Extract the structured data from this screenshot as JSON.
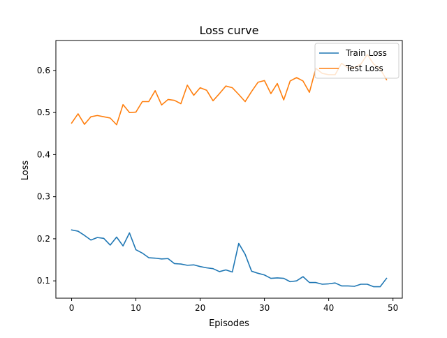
{
  "chart_data": {
    "type": "line",
    "title": "Loss curve",
    "xlabel": "Episodes",
    "ylabel": "Loss",
    "xlim": [
      -2.45,
      51.45
    ],
    "ylim": [
      0.0588,
      0.6712
    ],
    "xticks": [
      0,
      10,
      20,
      30,
      40,
      50
    ],
    "yticks": [
      0.1,
      0.2,
      0.3,
      0.4,
      0.5,
      0.6
    ],
    "ytick_labels": [
      "0.1",
      "0.2",
      "0.3",
      "0.4",
      "0.5",
      "0.6"
    ],
    "grid": false,
    "legend_position": "top-right",
    "x": [
      0,
      1,
      2,
      3,
      4,
      5,
      6,
      7,
      8,
      9,
      10,
      11,
      12,
      13,
      14,
      15,
      16,
      17,
      18,
      19,
      20,
      21,
      22,
      23,
      24,
      25,
      26,
      27,
      28,
      29,
      30,
      31,
      32,
      33,
      34,
      35,
      36,
      37,
      38,
      39,
      40,
      41,
      42,
      43,
      44,
      45,
      46,
      47,
      48,
      49
    ],
    "series": [
      {
        "name": "Train Loss",
        "color": "#1f77b4",
        "values": [
          0.221,
          0.218,
          0.208,
          0.197,
          0.203,
          0.201,
          0.185,
          0.204,
          0.183,
          0.214,
          0.174,
          0.166,
          0.155,
          0.154,
          0.152,
          0.153,
          0.141,
          0.14,
          0.137,
          0.138,
          0.134,
          0.131,
          0.129,
          0.122,
          0.126,
          0.121,
          0.189,
          0.163,
          0.123,
          0.118,
          0.114,
          0.106,
          0.107,
          0.106,
          0.098,
          0.1,
          0.11,
          0.096,
          0.096,
          0.092,
          0.093,
          0.095,
          0.088,
          0.088,
          0.087,
          0.092,
          0.092,
          0.086,
          0.086,
          0.106
        ]
      },
      {
        "name": "Test Loss",
        "color": "#ff7f0e",
        "values": [
          0.475,
          0.497,
          0.472,
          0.49,
          0.493,
          0.49,
          0.487,
          0.471,
          0.519,
          0.5,
          0.501,
          0.526,
          0.526,
          0.552,
          0.518,
          0.531,
          0.529,
          0.521,
          0.565,
          0.541,
          0.559,
          0.553,
          0.528,
          0.545,
          0.563,
          0.559,
          0.543,
          0.526,
          0.55,
          0.572,
          0.576,
          0.545,
          0.569,
          0.53,
          0.575,
          0.583,
          0.575,
          0.548,
          0.605,
          0.593,
          0.59,
          0.59,
          0.617,
          0.606,
          0.607,
          0.615,
          0.638,
          0.615,
          0.604,
          0.578
        ]
      }
    ]
  }
}
